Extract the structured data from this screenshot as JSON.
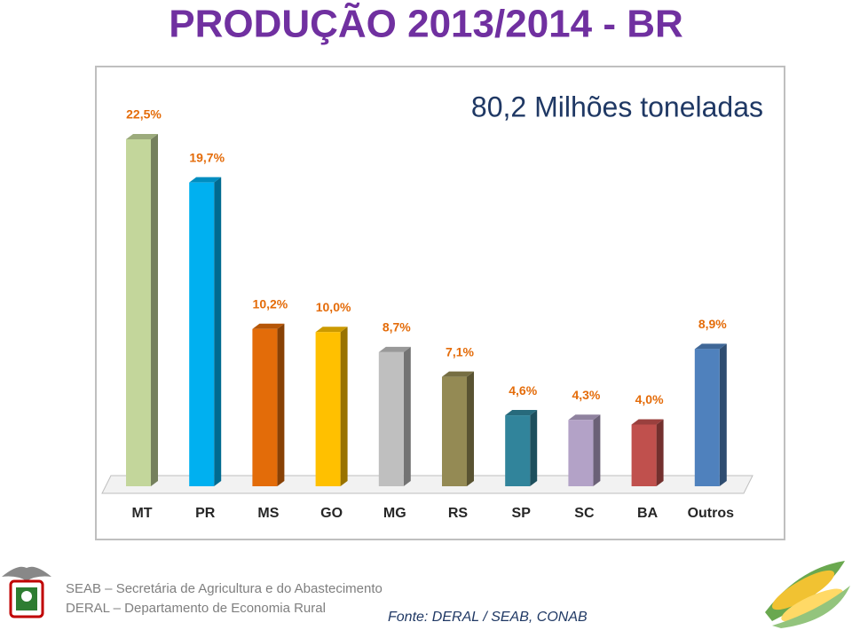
{
  "chart_data": {
    "type": "bar3d",
    "title": "PRODUÇÃO 2013/2014 - BR",
    "subtitle": "80,2 Milhões toneladas",
    "categories": [
      "MT",
      "PR",
      "MS",
      "GO",
      "MG",
      "RS",
      "SP",
      "SC",
      "BA",
      "Outros"
    ],
    "values": [
      22.5,
      19.7,
      10.2,
      10.0,
      8.7,
      7.1,
      4.6,
      4.3,
      4.0,
      8.9
    ],
    "value_labels": [
      "22,5%",
      "19,7%",
      "10,2%",
      "10,0%",
      "8,7%",
      "7,1%",
      "4,6%",
      "4,3%",
      "4,0%",
      "8,9%"
    ],
    "colors": [
      "#c3d69b",
      "#00b0f0",
      "#e36c09",
      "#ffc000",
      "#bfbfbf",
      "#948a54",
      "#31849b",
      "#b3a2c7",
      "#c0504d",
      "#4f81bd"
    ]
  },
  "footer": {
    "lines": [
      "SEAB – Secretária de Agricultura e do Abastecimento",
      "DERAL – Departamento de Economia Rural"
    ],
    "source": "Fonte: DERAL / SEAB, CONAB"
  }
}
